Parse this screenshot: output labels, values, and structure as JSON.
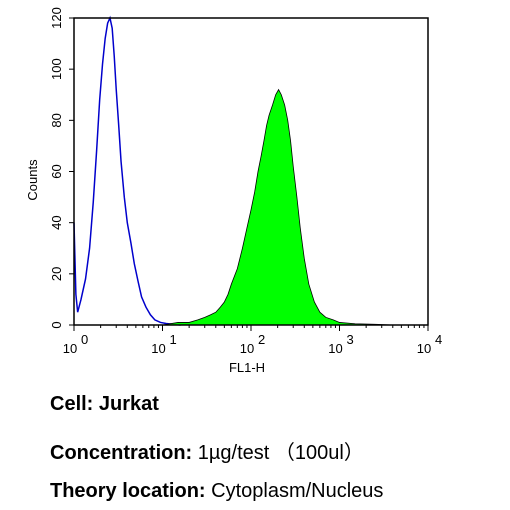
{
  "chart_data": {
    "type": "area",
    "xlabel": "FL1-H",
    "ylabel": "Counts",
    "x_scale": "log",
    "xlim": [
      1,
      10000
    ],
    "ylim": [
      0,
      120
    ],
    "x_ticks": [
      {
        "value": 1,
        "base": "10",
        "exp": "0"
      },
      {
        "value": 10,
        "base": "10",
        "exp": "1"
      },
      {
        "value": 100,
        "base": "10",
        "exp": "2"
      },
      {
        "value": 1000,
        "base": "10",
        "exp": "3"
      },
      {
        "value": 10000,
        "base": "10",
        "exp": "4"
      }
    ],
    "y_ticks": [
      "0",
      "20",
      "40",
      "60",
      "80",
      "100",
      "120"
    ],
    "grid": false,
    "legend": "none",
    "series": [
      {
        "style": "outline",
        "color": "#0000cc",
        "points": [
          [
            1.0,
            40
          ],
          [
            1.05,
            12
          ],
          [
            1.1,
            5
          ],
          [
            1.2,
            10
          ],
          [
            1.35,
            18
          ],
          [
            1.5,
            30
          ],
          [
            1.65,
            48
          ],
          [
            1.8,
            68
          ],
          [
            1.95,
            88
          ],
          [
            2.1,
            102
          ],
          [
            2.25,
            112
          ],
          [
            2.4,
            118
          ],
          [
            2.55,
            120
          ],
          [
            2.7,
            116
          ],
          [
            2.85,
            105
          ],
          [
            3.0,
            92
          ],
          [
            3.2,
            78
          ],
          [
            3.4,
            64
          ],
          [
            3.7,
            50
          ],
          [
            4.0,
            40
          ],
          [
            4.4,
            32
          ],
          [
            4.8,
            24
          ],
          [
            5.3,
            17
          ],
          [
            5.8,
            11
          ],
          [
            6.5,
            7
          ],
          [
            7.3,
            4
          ],
          [
            8.2,
            2
          ],
          [
            9.5,
            1
          ],
          [
            11,
            0.6
          ],
          [
            13,
            0.3
          ],
          [
            16,
            0
          ]
        ]
      },
      {
        "style": "filled",
        "color": "#00ff00",
        "points": [
          [
            10,
            0
          ],
          [
            15,
            1
          ],
          [
            20,
            1
          ],
          [
            25,
            2
          ],
          [
            30,
            3
          ],
          [
            35,
            4
          ],
          [
            40,
            5
          ],
          [
            45,
            7
          ],
          [
            50,
            9
          ],
          [
            55,
            12
          ],
          [
            60,
            16
          ],
          [
            70,
            22
          ],
          [
            80,
            30
          ],
          [
            90,
            38
          ],
          [
            100,
            45
          ],
          [
            110,
            52
          ],
          [
            120,
            60
          ],
          [
            130,
            66
          ],
          [
            140,
            72
          ],
          [
            150,
            78
          ],
          [
            160,
            82
          ],
          [
            175,
            86
          ],
          [
            190,
            90
          ],
          [
            205,
            92
          ],
          [
            220,
            90
          ],
          [
            240,
            86
          ],
          [
            260,
            80
          ],
          [
            280,
            72
          ],
          [
            300,
            62
          ],
          [
            330,
            50
          ],
          [
            360,
            38
          ],
          [
            400,
            26
          ],
          [
            450,
            16
          ],
          [
            520,
            9
          ],
          [
            600,
            5
          ],
          [
            700,
            3
          ],
          [
            850,
            2
          ],
          [
            1000,
            1
          ],
          [
            1500,
            0.5
          ],
          [
            2500,
            0.3
          ],
          [
            4000,
            0
          ]
        ]
      }
    ]
  },
  "captions": {
    "cell": {
      "key": "Cell:",
      "value": "Jurkat"
    },
    "concentration": {
      "key": "Concentration:",
      "value": "1µg/test （100ul）"
    },
    "theory": {
      "key": "Theory location:",
      "value": "Cytoplasm/Nucleus"
    }
  }
}
